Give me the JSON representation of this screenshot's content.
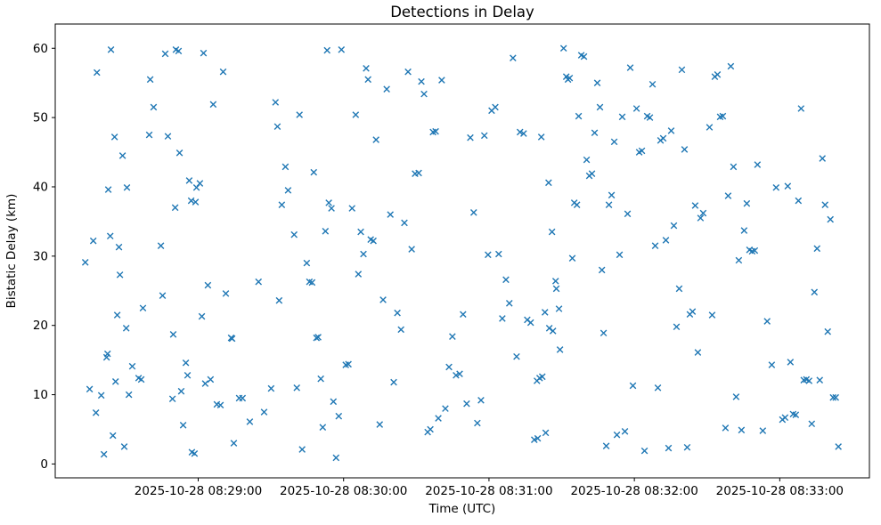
{
  "chart_data": {
    "type": "scatter",
    "title": "Detections in Delay",
    "xlabel": "Time (UTC)",
    "ylabel": "Bistatic Delay (km)",
    "marker": "x",
    "marker_color": "#1f77b4",
    "grid": false,
    "legend": null,
    "x_axis_encoding": "seconds after 2025-10-28 08:28:00 UTC",
    "xlim_seconds": [
      1,
      337
    ],
    "ylim": [
      -2,
      63.5
    ],
    "y_ticks": [
      0,
      10,
      20,
      30,
      40,
      50,
      60
    ],
    "x_ticks": [
      {
        "pos": 60,
        "label": "2025-10-28 08:29:00"
      },
      {
        "pos": 120,
        "label": "2025-10-28 08:30:00"
      },
      {
        "pos": 180,
        "label": "2025-10-28 08:31:00"
      },
      {
        "pos": 240,
        "label": "2025-10-28 08:32:00"
      },
      {
        "pos": 300,
        "label": "2025-10-28 08:33:00"
      }
    ],
    "points": [
      [
        13.4,
        29.1
      ],
      [
        15.2,
        10.8
      ],
      [
        16.7,
        32.2
      ],
      [
        17.8,
        7.4
      ],
      [
        18.2,
        56.5
      ],
      [
        20.0,
        9.9
      ],
      [
        21.1,
        1.4
      ],
      [
        22.2,
        15.4
      ],
      [
        22.6,
        15.9
      ],
      [
        22.9,
        39.6
      ],
      [
        23.7,
        32.9
      ],
      [
        24.0,
        59.8
      ],
      [
        24.8,
        4.1
      ],
      [
        25.5,
        47.2
      ],
      [
        25.9,
        11.9
      ],
      [
        26.6,
        21.5
      ],
      [
        27.3,
        31.3
      ],
      [
        27.7,
        27.3
      ],
      [
        28.8,
        44.5
      ],
      [
        29.5,
        2.5
      ],
      [
        30.3,
        19.6
      ],
      [
        30.6,
        39.9
      ],
      [
        31.4,
        10.0
      ],
      [
        32.8,
        14.1
      ],
      [
        35.4,
        12.4
      ],
      [
        36.5,
        12.2
      ],
      [
        37.2,
        22.5
      ],
      [
        39.8,
        47.5
      ],
      [
        40.2,
        55.5
      ],
      [
        41.6,
        51.5
      ],
      [
        44.6,
        31.5
      ],
      [
        45.3,
        24.3
      ],
      [
        46.4,
        59.2
      ],
      [
        47.5,
        47.3
      ],
      [
        49.4,
        9.4
      ],
      [
        49.7,
        18.7
      ],
      [
        50.5,
        37.0
      ],
      [
        50.8,
        59.8
      ],
      [
        51.9,
        59.6
      ],
      [
        52.3,
        44.9
      ],
      [
        53.0,
        10.5
      ],
      [
        53.8,
        5.6
      ],
      [
        54.9,
        14.6
      ],
      [
        55.6,
        12.8
      ],
      [
        56.3,
        40.9
      ],
      [
        57.1,
        38.0
      ],
      [
        57.4,
        1.7
      ],
      [
        58.5,
        1.5
      ],
      [
        58.9,
        37.8
      ],
      [
        59.3,
        39.9
      ],
      [
        60.7,
        40.5
      ],
      [
        61.5,
        21.3
      ],
      [
        62.2,
        59.3
      ],
      [
        62.9,
        11.6
      ],
      [
        64.0,
        25.8
      ],
      [
        65.1,
        12.2
      ],
      [
        66.2,
        51.9
      ],
      [
        67.7,
        8.6
      ],
      [
        69.2,
        8.5
      ],
      [
        70.3,
        56.6
      ],
      [
        71.4,
        24.6
      ],
      [
        73.6,
        18.2
      ],
      [
        74.0,
        18.1
      ],
      [
        74.7,
        3.0
      ],
      [
        76.9,
        9.5
      ],
      [
        78.3,
        9.5
      ],
      [
        81.3,
        6.1
      ],
      [
        84.9,
        26.3
      ],
      [
        87.2,
        7.5
      ],
      [
        90.1,
        10.9
      ],
      [
        91.9,
        52.2
      ],
      [
        92.7,
        48.7
      ],
      [
        93.4,
        23.6
      ],
      [
        94.5,
        37.4
      ],
      [
        96.0,
        42.9
      ],
      [
        97.1,
        39.5
      ],
      [
        99.6,
        33.1
      ],
      [
        100.7,
        11.0
      ],
      [
        101.8,
        50.4
      ],
      [
        102.9,
        2.1
      ],
      [
        104.8,
        29.0
      ],
      [
        105.9,
        26.3
      ],
      [
        107.0,
        26.2
      ],
      [
        107.7,
        42.1
      ],
      [
        108.8,
        18.2
      ],
      [
        109.5,
        18.3
      ],
      [
        110.6,
        12.3
      ],
      [
        111.4,
        5.3
      ],
      [
        112.5,
        33.6
      ],
      [
        113.2,
        59.7
      ],
      [
        113.9,
        37.7
      ],
      [
        115.0,
        36.9
      ],
      [
        115.8,
        9.0
      ],
      [
        116.9,
        0.9
      ],
      [
        118.0,
        6.9
      ],
      [
        119.1,
        59.8
      ],
      [
        120.9,
        14.3
      ],
      [
        122.0,
        14.4
      ],
      [
        123.5,
        36.9
      ],
      [
        125.0,
        50.4
      ],
      [
        126.1,
        27.4
      ],
      [
        127.1,
        33.5
      ],
      [
        128.2,
        30.3
      ],
      [
        129.3,
        57.1
      ],
      [
        130.1,
        55.5
      ],
      [
        131.2,
        32.4
      ],
      [
        132.3,
        32.2
      ],
      [
        133.4,
        46.8
      ],
      [
        134.9,
        5.7
      ],
      [
        136.3,
        23.7
      ],
      [
        137.8,
        54.1
      ],
      [
        139.3,
        36.0
      ],
      [
        140.7,
        11.8
      ],
      [
        142.2,
        21.8
      ],
      [
        143.7,
        19.4
      ],
      [
        145.1,
        34.8
      ],
      [
        146.6,
        56.6
      ],
      [
        148.1,
        31.0
      ],
      [
        149.5,
        41.9
      ],
      [
        151.0,
        42.0
      ],
      [
        152.1,
        55.2
      ],
      [
        153.2,
        53.4
      ],
      [
        154.7,
        4.6
      ],
      [
        155.8,
        5.0
      ],
      [
        156.9,
        47.9
      ],
      [
        158.0,
        48.0
      ],
      [
        159.1,
        6.6
      ],
      [
        160.5,
        55.4
      ],
      [
        162.0,
        8.0
      ],
      [
        163.5,
        14.0
      ],
      [
        164.9,
        18.4
      ],
      [
        166.4,
        12.8
      ],
      [
        167.9,
        13.0
      ],
      [
        169.3,
        21.6
      ],
      [
        170.8,
        8.7
      ],
      [
        172.3,
        47.1
      ],
      [
        173.7,
        36.3
      ],
      [
        175.2,
        5.9
      ],
      [
        176.7,
        9.2
      ],
      [
        178.1,
        47.4
      ],
      [
        179.6,
        30.2
      ],
      [
        181.1,
        51.0
      ],
      [
        182.6,
        51.5
      ],
      [
        184.0,
        30.3
      ],
      [
        185.5,
        21.0
      ],
      [
        187.0,
        26.6
      ],
      [
        188.4,
        23.2
      ],
      [
        189.9,
        58.6
      ],
      [
        191.4,
        15.5
      ],
      [
        192.8,
        47.9
      ],
      [
        194.3,
        47.7
      ],
      [
        195.8,
        20.8
      ],
      [
        197.2,
        20.4
      ],
      [
        198.7,
        3.5
      ],
      [
        200.1,
        3.7
      ],
      [
        201.6,
        47.2
      ],
      [
        203.1,
        21.9
      ],
      [
        204.6,
        40.6
      ],
      [
        206.0,
        33.5
      ],
      [
        207.5,
        26.4
      ],
      [
        199.8,
        12.0
      ],
      [
        200.9,
        12.4
      ],
      [
        202.0,
        12.6
      ],
      [
        203.4,
        4.5
      ],
      [
        204.9,
        19.6
      ],
      [
        206.4,
        19.2
      ],
      [
        207.8,
        25.3
      ],
      [
        208.9,
        22.4
      ],
      [
        209.3,
        16.5
      ],
      [
        210.8,
        60.0
      ],
      [
        211.9,
        55.9
      ],
      [
        212.6,
        55.5
      ],
      [
        213.3,
        55.7
      ],
      [
        214.4,
        29.7
      ],
      [
        215.2,
        37.7
      ],
      [
        216.3,
        37.4
      ],
      [
        217.0,
        50.2
      ],
      [
        218.1,
        59.0
      ],
      [
        219.2,
        58.8
      ],
      [
        220.3,
        43.9
      ],
      [
        221.4,
        41.6
      ],
      [
        222.5,
        41.9
      ],
      [
        223.6,
        47.8
      ],
      [
        224.7,
        55.0
      ],
      [
        225.8,
        51.5
      ],
      [
        226.6,
        28.0
      ],
      [
        227.3,
        18.9
      ],
      [
        228.4,
        2.6
      ],
      [
        229.5,
        37.4
      ],
      [
        230.6,
        38.8
      ],
      [
        231.7,
        46.5
      ],
      [
        232.8,
        4.2
      ],
      [
        233.9,
        30.2
      ],
      [
        235.0,
        50.1
      ],
      [
        236.1,
        4.7
      ],
      [
        237.2,
        36.1
      ],
      [
        238.3,
        57.2
      ],
      [
        239.4,
        11.3
      ],
      [
        240.9,
        51.3
      ],
      [
        242.0,
        45.0
      ],
      [
        243.1,
        45.2
      ],
      [
        244.2,
        1.9
      ],
      [
        245.3,
        50.2
      ],
      [
        246.4,
        50.0
      ],
      [
        247.5,
        54.8
      ],
      [
        248.6,
        31.5
      ],
      [
        249.7,
        11.0
      ],
      [
        250.8,
        46.7
      ],
      [
        251.9,
        47.0
      ],
      [
        253.0,
        32.3
      ],
      [
        254.1,
        2.3
      ],
      [
        255.2,
        48.1
      ],
      [
        256.3,
        34.4
      ],
      [
        257.4,
        19.8
      ],
      [
        258.5,
        25.3
      ],
      [
        259.6,
        56.9
      ],
      [
        260.7,
        45.4
      ],
      [
        261.8,
        2.4
      ],
      [
        262.9,
        21.6
      ],
      [
        264.0,
        22.0
      ],
      [
        265.1,
        37.3
      ],
      [
        266.2,
        16.1
      ],
      [
        267.3,
        35.5
      ],
      [
        268.4,
        36.2
      ],
      [
        271.0,
        48.6
      ],
      [
        272.1,
        21.5
      ],
      [
        273.2,
        55.9
      ],
      [
        274.3,
        56.2
      ],
      [
        275.4,
        50.1
      ],
      [
        276.5,
        50.2
      ],
      [
        277.6,
        5.2
      ],
      [
        278.7,
        38.7
      ],
      [
        279.8,
        57.4
      ],
      [
        280.9,
        42.9
      ],
      [
        282.0,
        9.7
      ],
      [
        283.1,
        29.4
      ],
      [
        284.2,
        4.9
      ],
      [
        285.3,
        33.7
      ],
      [
        286.4,
        37.6
      ],
      [
        287.5,
        30.9
      ],
      [
        288.6,
        30.7
      ],
      [
        289.7,
        30.8
      ],
      [
        290.8,
        43.2
      ],
      [
        293.0,
        4.8
      ],
      [
        294.8,
        20.6
      ],
      [
        296.7,
        14.3
      ],
      [
        298.5,
        39.9
      ],
      [
        301.1,
        6.4
      ],
      [
        302.2,
        6.7
      ],
      [
        303.3,
        40.1
      ],
      [
        304.4,
        14.7
      ],
      [
        305.5,
        7.2
      ],
      [
        306.6,
        7.1
      ],
      [
        307.7,
        38.0
      ],
      [
        308.8,
        51.3
      ],
      [
        309.9,
        12.1
      ],
      [
        311.0,
        12.2
      ],
      [
        312.1,
        12.0
      ],
      [
        313.2,
        5.8
      ],
      [
        314.3,
        24.8
      ],
      [
        315.4,
        31.1
      ],
      [
        316.5,
        12.1
      ],
      [
        317.6,
        44.1
      ],
      [
        318.7,
        37.4
      ],
      [
        319.8,
        19.1
      ],
      [
        320.9,
        35.3
      ],
      [
        322.0,
        9.6
      ],
      [
        323.1,
        9.6
      ],
      [
        324.2,
        2.5
      ]
    ]
  }
}
